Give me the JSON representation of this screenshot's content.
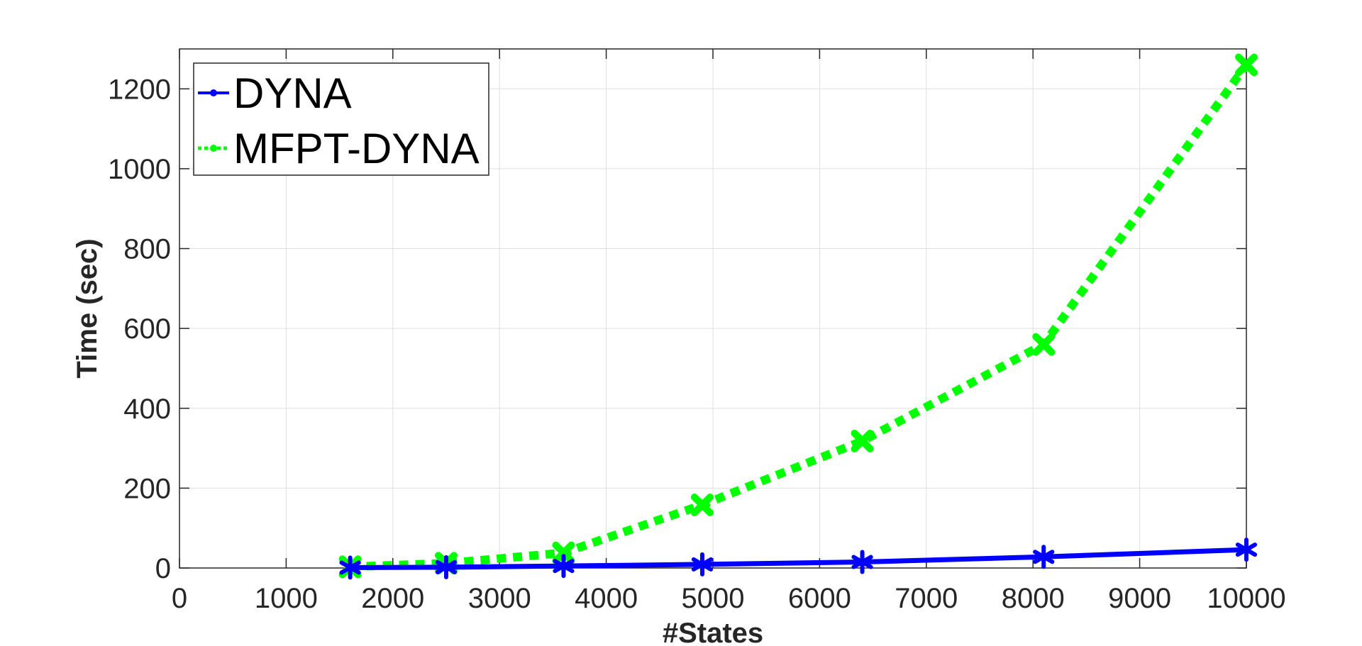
{
  "chart_data": {
    "type": "line",
    "xlabel": "#States",
    "ylabel": "Time (sec)",
    "xlim": [
      0,
      10000
    ],
    "ylim": [
      0,
      1300
    ],
    "xticks": [
      0,
      1000,
      2000,
      3000,
      4000,
      5000,
      6000,
      7000,
      8000,
      9000,
      10000
    ],
    "yticks": [
      0,
      200,
      400,
      600,
      800,
      1000,
      1200
    ],
    "grid": true,
    "legend_position": "top-left",
    "x": [
      1600,
      2500,
      3600,
      4900,
      6400,
      8100,
      10000
    ],
    "series": [
      {
        "name": "DYNA",
        "color": "#0000ff",
        "line_style": "solid",
        "marker": "asterisk",
        "values": [
          1,
          2,
          5,
          9,
          15,
          28,
          46
        ]
      },
      {
        "name": "MFPT-DYNA",
        "color": "#00ff00",
        "line_style": "dotted",
        "marker": "x",
        "values": [
          3,
          12,
          38,
          158,
          318,
          560,
          1260
        ]
      }
    ]
  }
}
